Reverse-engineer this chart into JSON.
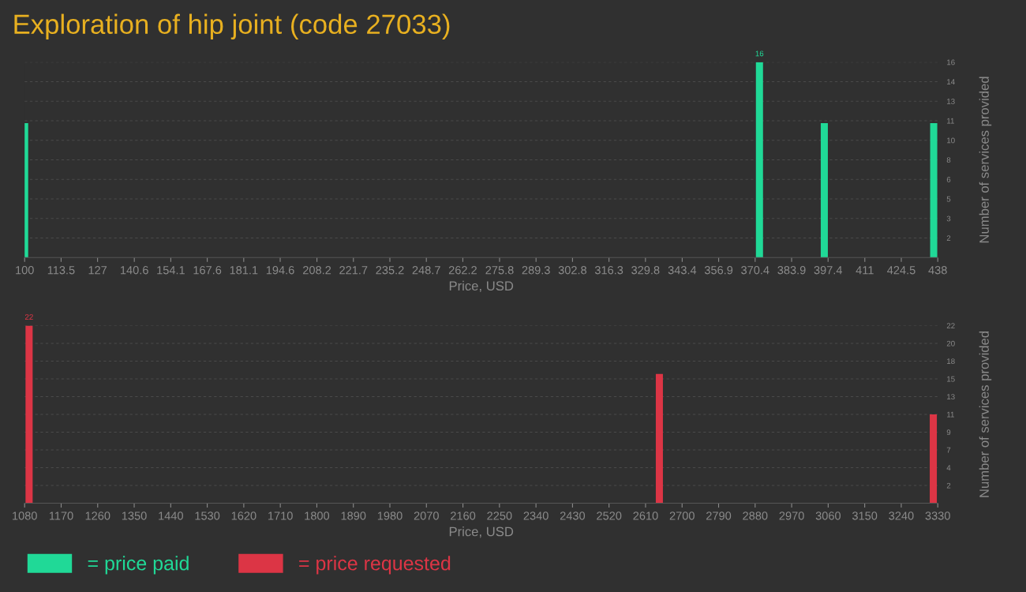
{
  "chart_data": [
    {
      "type": "bar",
      "title": "Exploration of hip joint (code 27033)",
      "xlabel": "Price, USD",
      "ylabel": "Number of services provided",
      "x": [
        100,
        372,
        396,
        436.5
      ],
      "series": [
        {
          "name": "= price paid",
          "color": "#20d997",
          "values": [
            11,
            16,
            11,
            11
          ],
          "value_labels": [
            null,
            "16",
            null,
            null
          ]
        }
      ],
      "xlim": [
        100,
        438
      ],
      "xticks": [
        100,
        113.5,
        127,
        140.6,
        154.1,
        167.6,
        181.1,
        194.6,
        208.2,
        221.7,
        235.2,
        248.7,
        262.2,
        275.8,
        289.3,
        302.8,
        316.3,
        329.8,
        343.4,
        356.9,
        370.4,
        383.9,
        397.4,
        411,
        424.5,
        438
      ],
      "ylim": [
        0,
        16
      ],
      "yticks": [
        {
          "value": 1.6,
          "label": "2"
        },
        {
          "value": 3.2,
          "label": "3"
        },
        {
          "value": 4.8,
          "label": "5"
        },
        {
          "value": 6.4,
          "label": "6"
        },
        {
          "value": 8,
          "label": "8"
        },
        {
          "value": 9.6,
          "label": "10"
        },
        {
          "value": 11.2,
          "label": "11"
        },
        {
          "value": 12.8,
          "label": "13"
        },
        {
          "value": 14.4,
          "label": "14"
        },
        {
          "value": 16,
          "label": "16"
        }
      ],
      "grid": "y"
    },
    {
      "type": "bar",
      "xlabel": "Price, USD",
      "ylabel": "Number of services provided",
      "x": [
        1091,
        2644,
        3319
      ],
      "series": [
        {
          "name": "= price requested",
          "color": "#dc3545",
          "values": [
            22,
            16,
            11
          ],
          "value_labels": [
            "22",
            null,
            null
          ]
        }
      ],
      "xlim": [
        1080,
        3330
      ],
      "xticks": [
        1080,
        1170,
        1260,
        1350,
        1440,
        1530,
        1620,
        1710,
        1800,
        1890,
        1980,
        2070,
        2160,
        2250,
        2340,
        2430,
        2520,
        2610,
        2700,
        2790,
        2880,
        2970,
        3060,
        3150,
        3240,
        3330
      ],
      "ylim": [
        0,
        22
      ],
      "yticks": [
        {
          "value": 2.2,
          "label": "2"
        },
        {
          "value": 4.4,
          "label": "4"
        },
        {
          "value": 6.6,
          "label": "7"
        },
        {
          "value": 8.8,
          "label": "9"
        },
        {
          "value": 11,
          "label": "11"
        },
        {
          "value": 13.2,
          "label": "13"
        },
        {
          "value": 15.4,
          "label": "15"
        },
        {
          "value": 17.6,
          "label": "18"
        },
        {
          "value": 19.8,
          "label": "20"
        },
        {
          "value": 22,
          "label": "22"
        }
      ],
      "grid": "y",
      "legend": "bottom left"
    }
  ]
}
